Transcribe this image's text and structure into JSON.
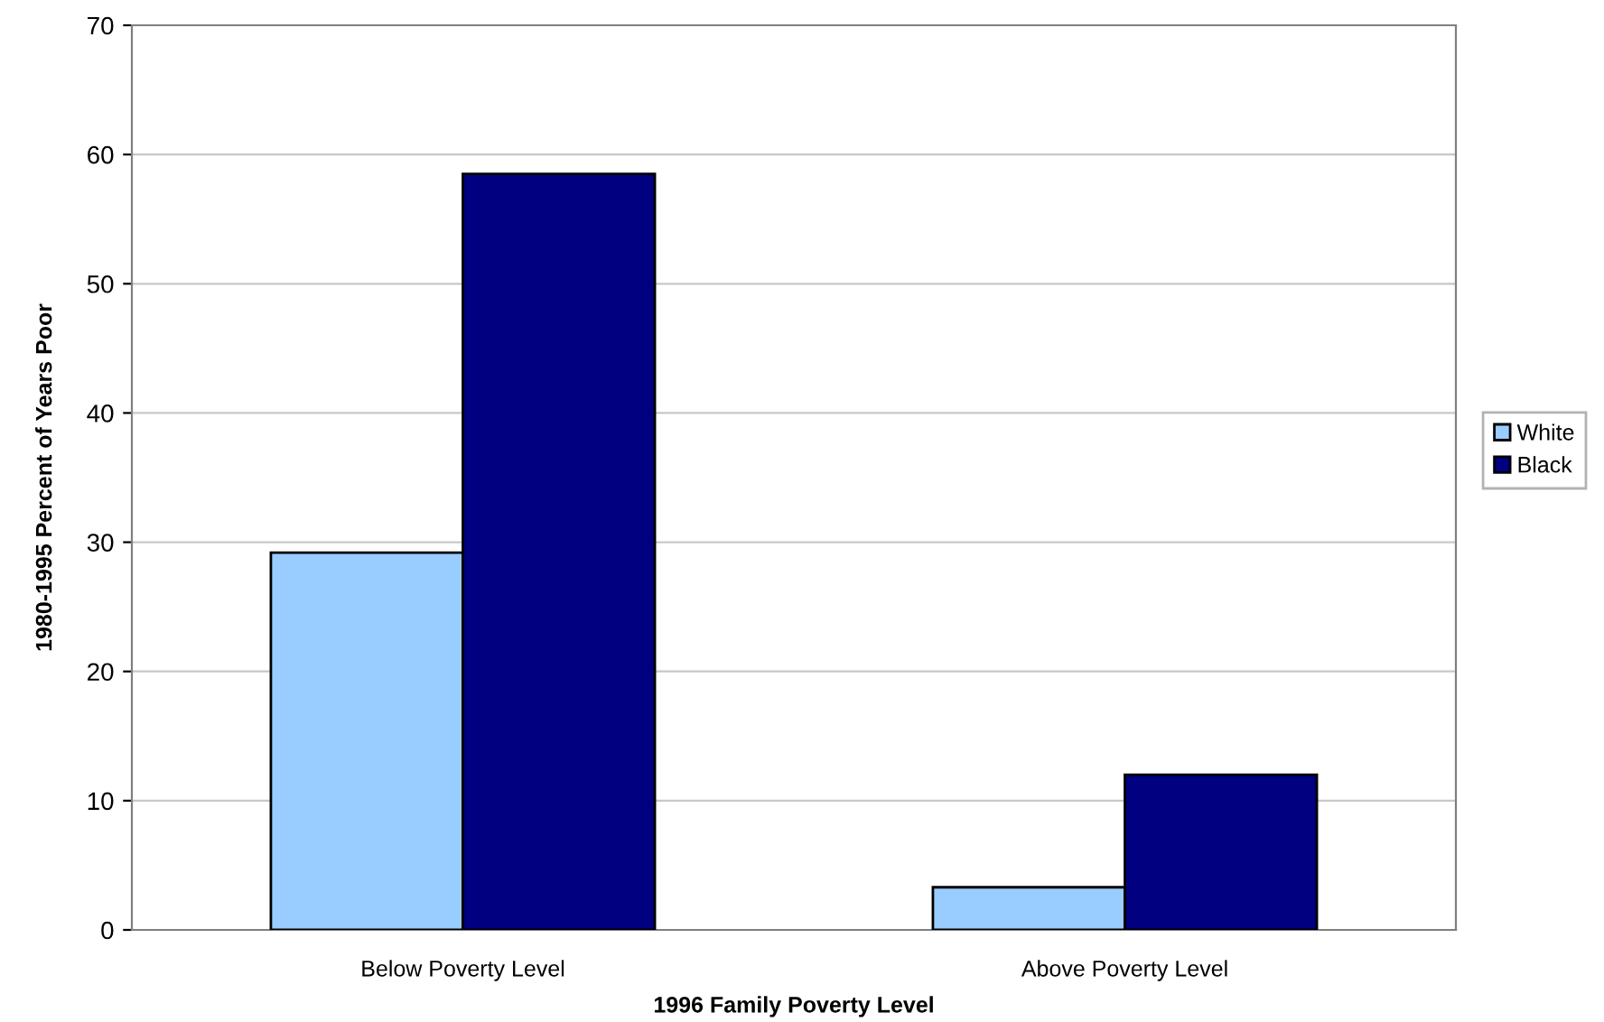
{
  "chart_data": {
    "type": "bar",
    "xlabel": "1996 Family Poverty Level",
    "ylabel": "1980-1995 Percent of Years Poor",
    "categories": [
      "Below Poverty Level",
      "Above Poverty Level"
    ],
    "series": [
      {
        "name": "White",
        "color": "#99ccff",
        "values": [
          29.2,
          3.3
        ]
      },
      {
        "name": "Black",
        "color": "#000080",
        "values": [
          58.5,
          12.0
        ]
      }
    ],
    "ylim": [
      0,
      70
    ],
    "yticks": [
      0,
      10,
      20,
      30,
      40,
      50,
      60,
      70
    ],
    "grid": "y",
    "legend": "right"
  }
}
